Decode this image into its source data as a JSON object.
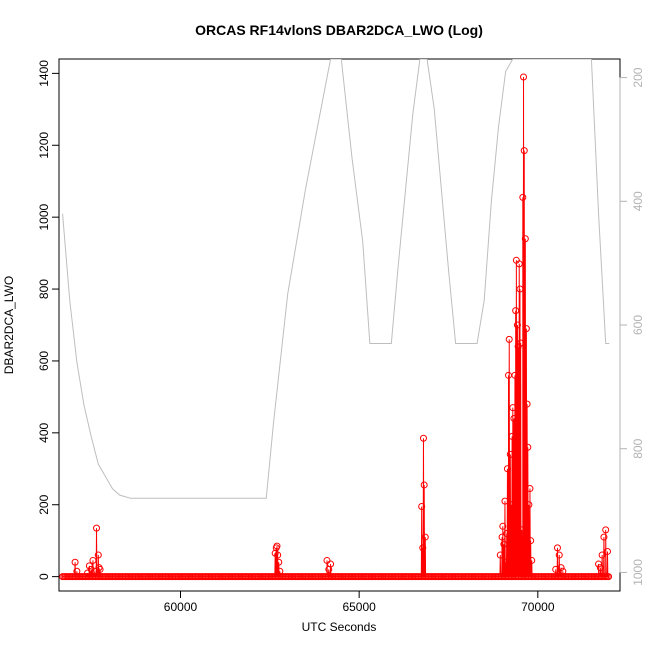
{
  "chart_data": {
    "type": "scatter",
    "title": "ORCAS RF14vlonS DBAR2DCA_LWO (Log)",
    "xlabel": "UTC Seconds",
    "ylabel": "DBAR2DCA_LWO",
    "xlim": [
      56600,
      72300
    ],
    "ylim": [
      -40,
      1440
    ],
    "x_ticks": [
      60000,
      65000,
      70000
    ],
    "y_ticks": [
      0,
      200,
      400,
      600,
      800,
      1000,
      1200,
      1400
    ],
    "x_tick_labels": [
      "60000",
      "65000",
      "70000"
    ],
    "y_tick_labels": [
      "0",
      "200",
      "400",
      "600",
      "800",
      "1000",
      "1200",
      "1400"
    ],
    "grid": false,
    "legend": "none",
    "colors": {
      "primary": "#ff0000",
      "secondary": "#bebebe",
      "right_axis": "#b3b3b3"
    },
    "right_axis": {
      "ylim_reversed": [
        1030,
        170
      ],
      "ticks": [
        200,
        400,
        600,
        800,
        1000
      ],
      "tick_labels": [
        "200",
        "400",
        "600",
        "800",
        "1000"
      ]
    },
    "series": [
      {
        "style": "line+points",
        "color": "#ff0000",
        "baseline": {
          "x_start": 56700,
          "x_end": 72000,
          "value": 0
        },
        "x": [
          57050,
          57100,
          57400,
          57450,
          57500,
          57550,
          57600,
          57650,
          57700,
          57720,
          57750,
          62650,
          62680,
          62700,
          62720,
          62750,
          62780,
          64100,
          64150,
          64200,
          66750,
          66780,
          66800,
          66820,
          66850,
          68950,
          69000,
          69020,
          69050,
          69080,
          69100,
          69130,
          69150,
          69180,
          69200,
          69230,
          69260,
          69280,
          69300,
          69330,
          69360,
          69380,
          69400,
          69430,
          69450,
          69480,
          69500,
          69520,
          69550,
          69580,
          69600,
          69620,
          69650,
          69680,
          69700,
          69720,
          69750,
          69780,
          69800,
          69830,
          70500,
          70550,
          70600,
          70650,
          70700,
          71700,
          71750,
          71800,
          71850,
          71900,
          71950
        ],
        "y": [
          40,
          15,
          10,
          30,
          20,
          45,
          15,
          135,
          60,
          25,
          20,
          65,
          80,
          85,
          60,
          40,
          15,
          45,
          20,
          35,
          195,
          80,
          385,
          255,
          110,
          60,
          110,
          140,
          90,
          210,
          40,
          120,
          300,
          560,
          660,
          340,
          200,
          390,
          470,
          440,
          560,
          740,
          880,
          700,
          640,
          870,
          800,
          650,
          130,
          1055,
          1390,
          1185,
          940,
          690,
          480,
          360,
          200,
          245,
          100,
          45,
          20,
          80,
          60,
          25,
          15,
          35,
          25,
          60,
          110,
          130,
          70
        ]
      },
      {
        "style": "line",
        "color": "#bebebe",
        "axis": "right",
        "x": [
          56700,
          56900,
          57100,
          57300,
          57500,
          57700,
          57900,
          58100,
          58300,
          58600,
          59000,
          60000,
          61000,
          62000,
          62400,
          62600,
          63000,
          63500,
          64000,
          64200,
          64500,
          64800,
          65100,
          65300,
          65500,
          65700,
          65900,
          66100,
          66300,
          66500,
          66700,
          66800,
          66900,
          67100,
          67300,
          67500,
          67700,
          67900,
          68100,
          68300,
          68500,
          68700,
          68900,
          69100,
          69300,
          69500,
          69700,
          69900,
          70100,
          70300,
          70500,
          70700,
          70900,
          71100,
          71300,
          71500,
          71700,
          71900,
          72000
        ],
        "y": [
          420,
          560,
          660,
          730,
          780,
          825,
          845,
          865,
          875,
          880,
          880,
          880,
          880,
          880,
          880,
          760,
          550,
          380,
          230,
          170,
          170,
          330,
          465,
          630,
          630,
          630,
          630,
          500,
          380,
          260,
          170,
          170,
          170,
          250,
          380,
          510,
          630,
          630,
          630,
          630,
          560,
          400,
          280,
          190,
          170,
          170,
          170,
          170,
          170,
          170,
          170,
          170,
          170,
          170,
          170,
          170,
          420,
          630,
          630
        ]
      }
    ]
  }
}
